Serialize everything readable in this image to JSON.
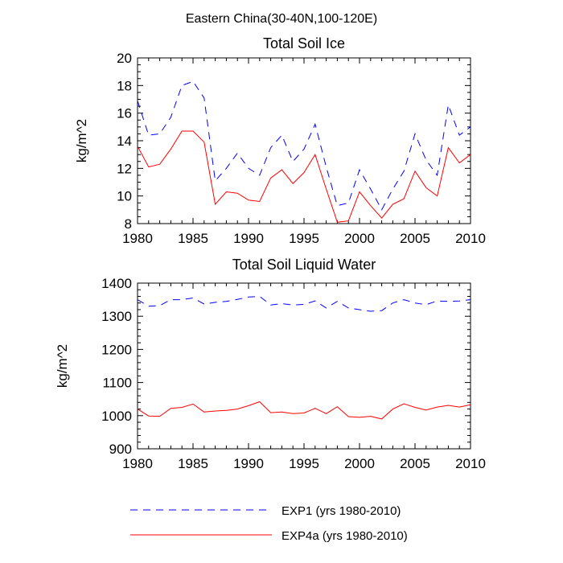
{
  "suptitle": "Eastern China(30-40N,100-120E)",
  "colors": {
    "exp1": "#0000ff",
    "exp4a": "#ff0000",
    "axis": "#000000"
  },
  "chart_data": [
    {
      "type": "line",
      "title": "Total Soil Ice",
      "ylabel": "kg/m^2",
      "xlabel": "",
      "xlim": [
        1980,
        2010
      ],
      "ylim": [
        8,
        20
      ],
      "xticks": [
        1980,
        1985,
        1990,
        1995,
        2000,
        2005,
        2010
      ],
      "yticks": [
        8,
        10,
        12,
        14,
        16,
        18,
        20
      ],
      "grid": false,
      "x": [
        1980,
        1981,
        1982,
        1983,
        1984,
        1985,
        1986,
        1987,
        1988,
        1989,
        1990,
        1991,
        1992,
        1993,
        1994,
        1995,
        1996,
        1997,
        1998,
        1999,
        2000,
        2001,
        2002,
        2003,
        2004,
        2005,
        2006,
        2007,
        2008,
        2009,
        2010
      ],
      "series": [
        {
          "name": "EXP1 (yrs 1980-2010)",
          "style": "dashed",
          "values": [
            16.9,
            14.4,
            14.5,
            15.7,
            18.0,
            18.3,
            17.1,
            11.1,
            12.0,
            13.1,
            12.0,
            11.5,
            13.5,
            14.4,
            12.5,
            13.4,
            15.2,
            12.1,
            9.3,
            9.5,
            11.9,
            10.5,
            9.0,
            10.5,
            11.8,
            14.5,
            12.6,
            11.5,
            16.6,
            14.4,
            15.0
          ]
        },
        {
          "name": "EXP4a (yrs 1980-2010)",
          "style": "solid",
          "values": [
            13.6,
            12.1,
            12.3,
            13.4,
            14.7,
            14.7,
            13.9,
            9.4,
            10.3,
            10.2,
            9.7,
            9.6,
            11.3,
            11.9,
            10.9,
            11.7,
            13.0,
            10.5,
            8.1,
            8.2,
            10.3,
            9.3,
            8.4,
            9.4,
            9.8,
            11.8,
            10.6,
            10.0,
            13.5,
            12.4,
            13.0
          ]
        }
      ]
    },
    {
      "type": "line",
      "title": "Total Soil Liquid Water",
      "ylabel": "kg/m^2",
      "xlabel": "",
      "xlim": [
        1980,
        2010
      ],
      "ylim": [
        900,
        1400
      ],
      "xticks": [
        1980,
        1985,
        1990,
        1995,
        2000,
        2005,
        2010
      ],
      "yticks": [
        900,
        1000,
        1100,
        1200,
        1300,
        1400
      ],
      "grid": false,
      "x": [
        1980,
        1981,
        1982,
        1983,
        1984,
        1985,
        1986,
        1987,
        1988,
        1989,
        1990,
        1991,
        1992,
        1993,
        1994,
        1995,
        1996,
        1997,
        1998,
        1999,
        2000,
        2001,
        2002,
        2003,
        2004,
        2005,
        2006,
        2007,
        2008,
        2009,
        2010
      ],
      "series": [
        {
          "name": "EXP1 (yrs 1980-2010)",
          "style": "dashed",
          "values": [
            1350,
            1330,
            1332,
            1350,
            1350,
            1355,
            1337,
            1342,
            1345,
            1351,
            1358,
            1360,
            1334,
            1338,
            1334,
            1336,
            1346,
            1325,
            1345,
            1325,
            1320,
            1315,
            1317,
            1340,
            1350,
            1340,
            1335,
            1346,
            1345,
            1346,
            1350
          ]
        },
        {
          "name": "EXP4a (yrs 1980-2010)",
          "style": "solid",
          "values": [
            1020,
            999,
            998,
            1022,
            1025,
            1035,
            1011,
            1014,
            1016,
            1020,
            1030,
            1042,
            1009,
            1011,
            1006,
            1008,
            1022,
            1006,
            1027,
            997,
            995,
            998,
            990,
            1020,
            1036,
            1025,
            1017,
            1026,
            1031,
            1026,
            1033
          ]
        }
      ]
    }
  ],
  "legend": {
    "position": "bottom",
    "items": [
      {
        "label": "EXP1 (yrs 1980-2010)",
        "style": "dashed",
        "color": "#0000ff"
      },
      {
        "label": "EXP4a (yrs 1980-2010)",
        "style": "solid",
        "color": "#ff0000"
      }
    ]
  }
}
